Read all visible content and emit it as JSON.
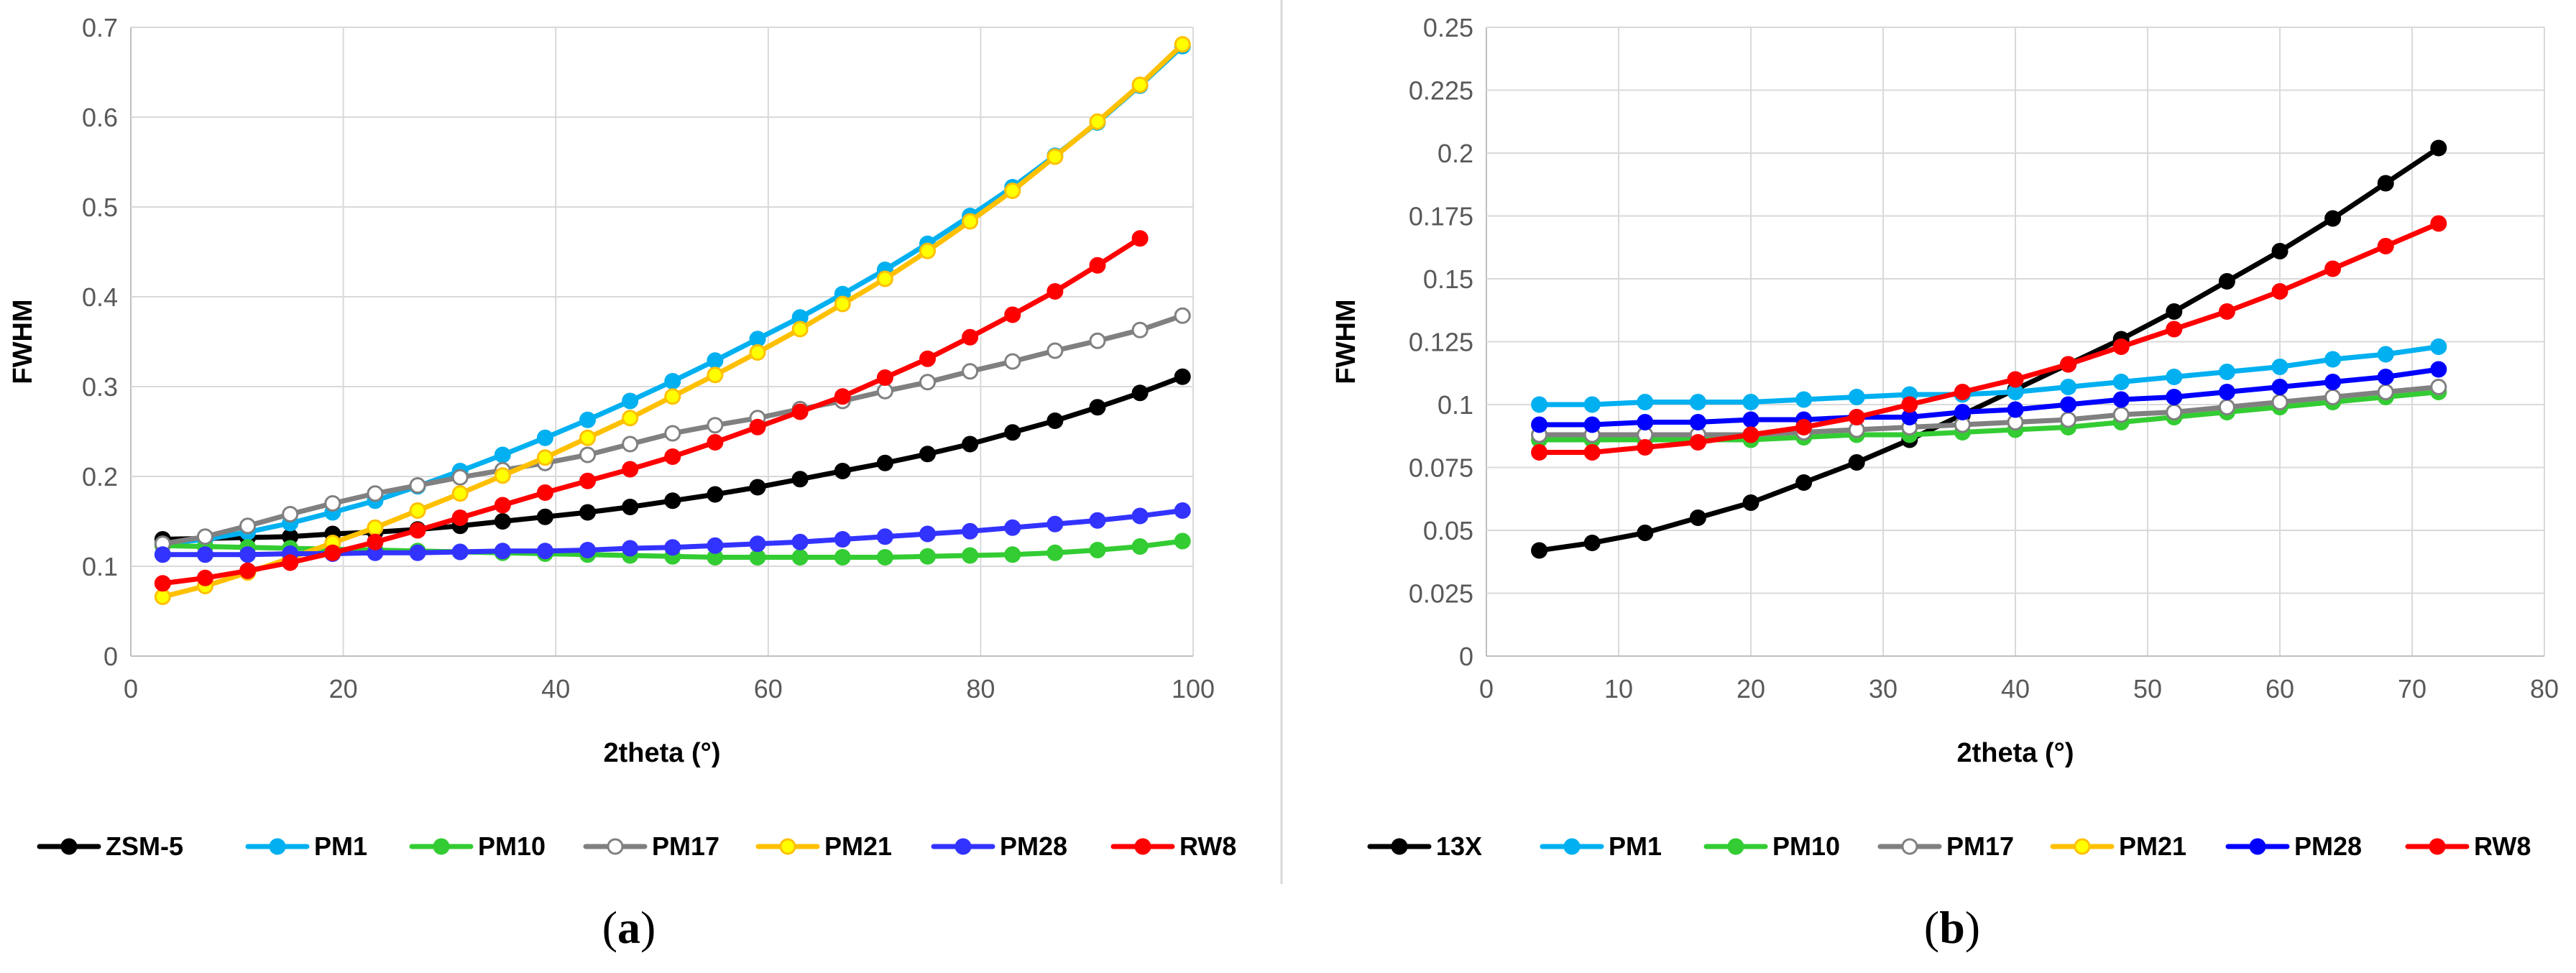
{
  "chart_data": [
    {
      "type": "line",
      "panel_label": "a",
      "xlabel": "2theta (°)",
      "ylabel": "FWHM",
      "xlim": [
        0,
        100
      ],
      "ylim": [
        0,
        0.7
      ],
      "xticks": [
        0,
        20,
        40,
        60,
        80,
        100
      ],
      "yticks": [
        0,
        0.1,
        0.2,
        0.3,
        0.4,
        0.5,
        0.6,
        0.7
      ],
      "xtick_labels": [
        "0",
        "20",
        "40",
        "60",
        "80",
        "100"
      ],
      "ytick_labels": [
        "0",
        "0.1",
        "0.2",
        "0.3",
        "0.4",
        "0.5",
        "0.6",
        "0.7"
      ],
      "grid": true,
      "legend_position": "bottom",
      "series": [
        {
          "name": "ZSM-5",
          "color": "#000000",
          "marker_fill": "#000000",
          "x": [
            3,
            7,
            11,
            15,
            19,
            23,
            27,
            31,
            35,
            39,
            43,
            47,
            51,
            55,
            59,
            63,
            67,
            71,
            75,
            79,
            83,
            87,
            91,
            95,
            99
          ],
          "y": [
            0.13,
            0.131,
            0.132,
            0.133,
            0.136,
            0.138,
            0.141,
            0.145,
            0.15,
            0.155,
            0.16,
            0.166,
            0.173,
            0.18,
            0.188,
            0.197,
            0.206,
            0.215,
            0.225,
            0.236,
            0.249,
            0.262,
            0.277,
            0.293,
            0.311
          ]
        },
        {
          "name": "PM1",
          "color": "#00B0F0",
          "marker_fill": "#00B0F0",
          "x": [
            3,
            7,
            11,
            15,
            19,
            23,
            27,
            31,
            35,
            39,
            43,
            47,
            51,
            55,
            59,
            63,
            67,
            71,
            75,
            79,
            83,
            87,
            91,
            95,
            99
          ],
          "y": [
            0.125,
            0.13,
            0.138,
            0.148,
            0.16,
            0.173,
            0.189,
            0.206,
            0.224,
            0.243,
            0.263,
            0.284,
            0.306,
            0.329,
            0.353,
            0.377,
            0.403,
            0.43,
            0.459,
            0.49,
            0.522,
            0.557,
            0.594,
            0.635,
            0.679
          ]
        },
        {
          "name": "PM10",
          "color": "#33CC33",
          "marker_fill": "#33CC33",
          "x": [
            3,
            7,
            11,
            15,
            19,
            23,
            27,
            31,
            35,
            39,
            43,
            47,
            51,
            55,
            59,
            63,
            67,
            71,
            75,
            79,
            83,
            87,
            91,
            95,
            99
          ],
          "y": [
            0.123,
            0.122,
            0.121,
            0.12,
            0.119,
            0.118,
            0.117,
            0.116,
            0.115,
            0.114,
            0.113,
            0.112,
            0.111,
            0.11,
            0.11,
            0.11,
            0.11,
            0.11,
            0.111,
            0.112,
            0.113,
            0.115,
            0.118,
            0.122,
            0.128
          ]
        },
        {
          "name": "PM17",
          "color": "#808080",
          "marker_fill": "#FFFFFF",
          "x": [
            3,
            7,
            11,
            15,
            19,
            23,
            27,
            31,
            35,
            39,
            43,
            47,
            51,
            55,
            59,
            63,
            67,
            71,
            75,
            79,
            83,
            87,
            91,
            95,
            99
          ],
          "y": [
            0.125,
            0.133,
            0.145,
            0.158,
            0.17,
            0.181,
            0.19,
            0.199,
            0.207,
            0.215,
            0.224,
            0.236,
            0.248,
            0.257,
            0.265,
            0.275,
            0.284,
            0.295,
            0.305,
            0.317,
            0.328,
            0.34,
            0.351,
            0.363,
            0.379
          ]
        },
        {
          "name": "PM21",
          "color": "#FFC000",
          "marker_fill": "#FFFF00",
          "x": [
            3,
            7,
            11,
            15,
            19,
            23,
            27,
            31,
            35,
            39,
            43,
            47,
            51,
            55,
            59,
            63,
            67,
            71,
            75,
            79,
            83,
            87,
            91,
            95,
            99
          ],
          "y": [
            0.066,
            0.078,
            0.093,
            0.109,
            0.126,
            0.143,
            0.162,
            0.181,
            0.201,
            0.221,
            0.243,
            0.265,
            0.289,
            0.313,
            0.338,
            0.364,
            0.392,
            0.42,
            0.451,
            0.484,
            0.518,
            0.556,
            0.595,
            0.636,
            0.681
          ]
        },
        {
          "name": "PM28",
          "color": "#3333FF",
          "marker_fill": "#3333FF",
          "x": [
            3,
            7,
            11,
            15,
            19,
            23,
            27,
            31,
            35,
            39,
            43,
            47,
            51,
            55,
            59,
            63,
            67,
            71,
            75,
            79,
            83,
            87,
            91,
            95,
            99
          ],
          "y": [
            0.113,
            0.113,
            0.113,
            0.114,
            0.114,
            0.115,
            0.115,
            0.116,
            0.117,
            0.117,
            0.118,
            0.12,
            0.121,
            0.123,
            0.125,
            0.127,
            0.13,
            0.133,
            0.136,
            0.139,
            0.143,
            0.147,
            0.151,
            0.156,
            0.162
          ]
        },
        {
          "name": "RW8",
          "color": "#FF0000",
          "marker_fill": "#FF0000",
          "x": [
            3,
            7,
            11,
            15,
            19,
            23,
            27,
            31,
            35,
            39,
            43,
            47,
            51,
            55,
            59,
            63,
            67,
            71,
            75,
            79,
            83,
            87,
            91,
            95
          ],
          "y": [
            0.081,
            0.087,
            0.095,
            0.104,
            0.115,
            0.127,
            0.14,
            0.154,
            0.168,
            0.182,
            0.195,
            0.208,
            0.222,
            0.238,
            0.255,
            0.272,
            0.289,
            0.31,
            0.331,
            0.355,
            0.38,
            0.406,
            0.435,
            0.465
          ]
        }
      ]
    },
    {
      "type": "line",
      "panel_label": "b",
      "xlabel": "2theta (°)",
      "ylabel": "FWHM",
      "xlim": [
        0,
        80
      ],
      "ylim": [
        0,
        0.25
      ],
      "xticks": [
        0,
        10,
        20,
        30,
        40,
        50,
        60,
        70,
        80
      ],
      "yticks": [
        0,
        0.025,
        0.05,
        0.075,
        0.1,
        0.125,
        0.15,
        0.175,
        0.2,
        0.225,
        0.25
      ],
      "xtick_labels": [
        "0",
        "10",
        "20",
        "30",
        "40",
        "50",
        "60",
        "70",
        "80"
      ],
      "ytick_labels": [
        "0",
        "0.025",
        "0.05",
        "0.075",
        "0.1",
        "0.125",
        "0.15",
        "0.175",
        "0.2",
        "0.225",
        "0.25"
      ],
      "grid": true,
      "legend_position": "bottom",
      "series": [
        {
          "name": "13X",
          "color": "#000000",
          "marker_fill": "#000000",
          "x": [
            4,
            8,
            12,
            16,
            20,
            24,
            28,
            32,
            36,
            40,
            44,
            48,
            52,
            56,
            60,
            64,
            68,
            72
          ],
          "y": [
            0.042,
            0.045,
            0.049,
            0.055,
            0.061,
            0.069,
            0.077,
            0.086,
            0.096,
            0.106,
            0.116,
            0.126,
            0.137,
            0.149,
            0.161,
            0.174,
            0.188,
            0.202
          ]
        },
        {
          "name": "PM1",
          "color": "#00B0F0",
          "marker_fill": "#00B0F0",
          "x": [
            4,
            8,
            12,
            16,
            20,
            24,
            28,
            32,
            36,
            40,
            44,
            48,
            52,
            56,
            60,
            64,
            68,
            72
          ],
          "y": [
            0.1,
            0.1,
            0.101,
            0.101,
            0.101,
            0.102,
            0.103,
            0.104,
            0.104,
            0.105,
            0.107,
            0.109,
            0.111,
            0.113,
            0.115,
            0.118,
            0.12,
            0.123
          ]
        },
        {
          "name": "PM10",
          "color": "#33CC33",
          "marker_fill": "#33CC33",
          "x": [
            4,
            8,
            12,
            16,
            20,
            24,
            28,
            32,
            36,
            40,
            44,
            48,
            52,
            56,
            60,
            64,
            68,
            72
          ],
          "y": [
            0.086,
            0.086,
            0.086,
            0.086,
            0.086,
            0.087,
            0.088,
            0.088,
            0.089,
            0.09,
            0.091,
            0.093,
            0.095,
            0.097,
            0.099,
            0.101,
            0.103,
            0.105
          ]
        },
        {
          "name": "PM17",
          "color": "#808080",
          "marker_fill": "#FFFFFF",
          "x": [
            4,
            8,
            12,
            16,
            20,
            24,
            28,
            32,
            36,
            40,
            44,
            48,
            52,
            56,
            60,
            64,
            68,
            72
          ],
          "y": [
            0.088,
            0.088,
            0.088,
            0.088,
            0.088,
            0.089,
            0.09,
            0.091,
            0.092,
            0.093,
            0.094,
            0.096,
            0.097,
            0.099,
            0.101,
            0.103,
            0.105,
            0.107
          ]
        },
        {
          "name": "PM21",
          "color": "#FFC000",
          "marker_fill": "#FFFF00",
          "x": [],
          "y": []
        },
        {
          "name": "PM28",
          "color": "#0000FF",
          "marker_fill": "#0000FF",
          "x": [
            4,
            8,
            12,
            16,
            20,
            24,
            28,
            32,
            36,
            40,
            44,
            48,
            52,
            56,
            60,
            64,
            68,
            72
          ],
          "y": [
            0.092,
            0.092,
            0.093,
            0.093,
            0.094,
            0.094,
            0.095,
            0.095,
            0.097,
            0.098,
            0.1,
            0.102,
            0.103,
            0.105,
            0.107,
            0.109,
            0.111,
            0.114
          ]
        },
        {
          "name": "RW8",
          "color": "#FF0000",
          "marker_fill": "#FF0000",
          "x": [
            4,
            8,
            12,
            16,
            20,
            24,
            28,
            32,
            36,
            40,
            44,
            48,
            52,
            56,
            60,
            64,
            68,
            72
          ],
          "y": [
            0.081,
            0.081,
            0.083,
            0.085,
            0.088,
            0.091,
            0.095,
            0.1,
            0.105,
            0.11,
            0.116,
            0.123,
            0.13,
            0.137,
            0.145,
            0.154,
            0.163,
            0.172
          ]
        }
      ]
    }
  ]
}
